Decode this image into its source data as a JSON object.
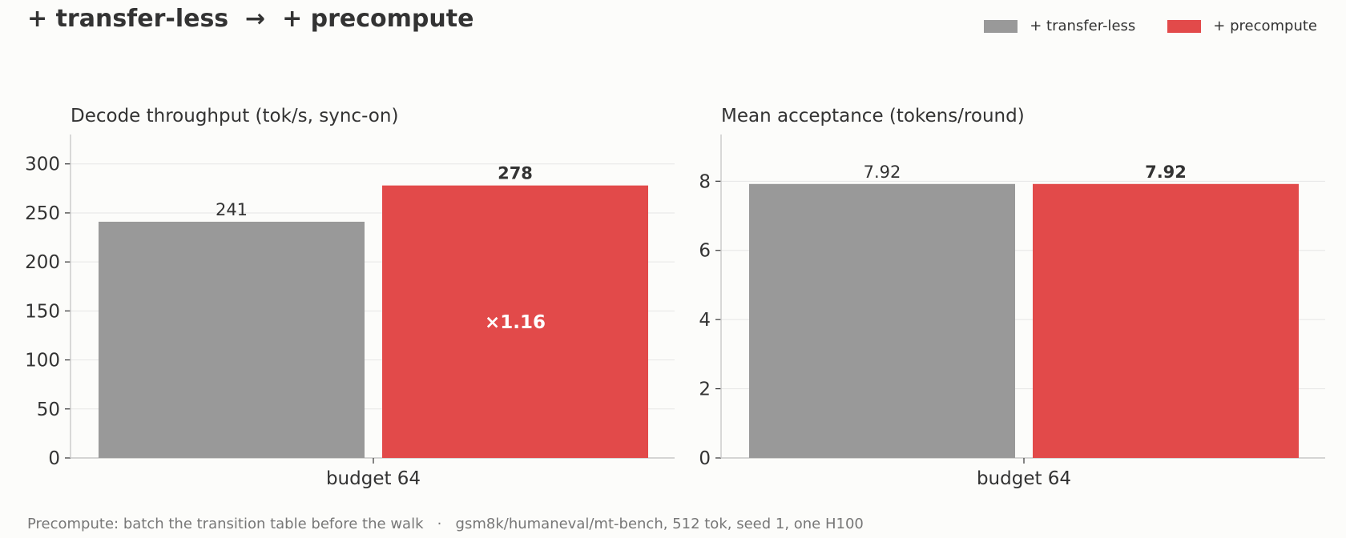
{
  "title": "+ transfer-less  →  + precompute",
  "legend": [
    {
      "label": "+ transfer-less",
      "color": "#999999"
    },
    {
      "label": "+ precompute",
      "color": "#e24a4a"
    }
  ],
  "footnote": "Precompute: batch the transition table before the walk   ·   gsm8k/humaneval/mt-bench, 512 tok, seed 1, one H100",
  "chart_data": [
    {
      "type": "bar",
      "title": "Decode throughput (tok/s, sync-on)",
      "categories": [
        "budget 64"
      ],
      "series": [
        {
          "name": "+ transfer-less",
          "values": [
            241
          ],
          "color": "#999999",
          "label": "241",
          "bold": false
        },
        {
          "name": "+ precompute",
          "values": [
            278
          ],
          "color": "#e24a4a",
          "label": "278",
          "bold": true,
          "inner_label": "×1.16"
        }
      ],
      "ylim": [
        0,
        330
      ],
      "yticks": [
        0,
        50,
        100,
        150,
        200,
        250,
        300
      ],
      "grid": true
    },
    {
      "type": "bar",
      "title": "Mean acceptance (tokens/round)",
      "categories": [
        "budget 64"
      ],
      "series": [
        {
          "name": "+ transfer-less",
          "values": [
            7.92
          ],
          "color": "#999999",
          "label": "7.92",
          "bold": false
        },
        {
          "name": "+ precompute",
          "values": [
            7.92
          ],
          "color": "#e24a4a",
          "label": "7.92",
          "bold": true
        }
      ],
      "ylim": [
        0,
        9.35
      ],
      "yticks": [
        0,
        2,
        4,
        6,
        8
      ],
      "grid": true
    }
  ]
}
